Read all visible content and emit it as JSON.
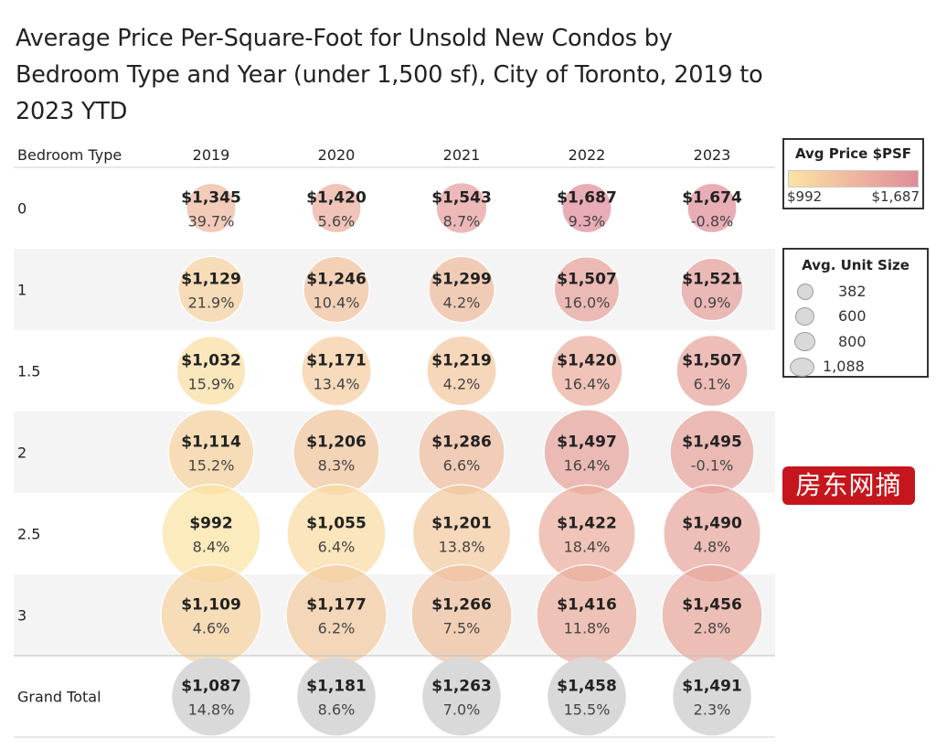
{
  "chart_data": {
    "type": "table",
    "title": "Average Price Per-Square-Foot for Unsold New Condos by Bedroom Type and Year (under 1,500 sf), City of Toronto, 2019 to 2023 YTD",
    "row_header": "Bedroom Type",
    "years": [
      "2019",
      "2020",
      "2021",
      "2022",
      "2023"
    ],
    "rows": [
      {
        "label": "0",
        "prices": [
          "$1,345",
          "$1,420",
          "$1,543",
          "$1,687",
          "$1,674"
        ],
        "price_values": [
          1345,
          1420,
          1543,
          1687,
          1674
        ],
        "changes": [
          "39.7%",
          "5.6%",
          "8.7%",
          "9.3%",
          "-0.8%"
        ],
        "unit_size_estimate": [
          382,
          382,
          400,
          382,
          382
        ]
      },
      {
        "label": "1",
        "prices": [
          "$1,129",
          "$1,246",
          "$1,299",
          "$1,507",
          "$1,521"
        ],
        "price_values": [
          1129,
          1246,
          1299,
          1507,
          1521
        ],
        "changes": [
          "21.9%",
          "10.4%",
          "4.2%",
          "16.0%",
          "0.9%"
        ],
        "unit_size_estimate": [
          610,
          610,
          610,
          600,
          560
        ]
      },
      {
        "label": "1.5",
        "prices": [
          "$1,032",
          "$1,171",
          "$1,219",
          "$1,420",
          "$1,507"
        ],
        "price_values": [
          1032,
          1171,
          1219,
          1420,
          1507
        ],
        "changes": [
          "15.9%",
          "13.4%",
          "4.2%",
          "16.4%",
          "6.1%"
        ],
        "unit_size_estimate": [
          650,
          660,
          660,
          680,
          680
        ]
      },
      {
        "label": "2",
        "prices": [
          "$1,114",
          "$1,206",
          "$1,286",
          "$1,497",
          "$1,495"
        ],
        "price_values": [
          1114,
          1206,
          1286,
          1497,
          1495
        ],
        "changes": [
          "15.2%",
          "8.3%",
          "6.6%",
          "16.4%",
          "-0.1%"
        ],
        "unit_size_estimate": [
          880,
          890,
          890,
          880,
          860
        ]
      },
      {
        "label": "2.5",
        "prices": [
          "$992",
          "$1,055",
          "$1,201",
          "$1,422",
          "$1,490"
        ],
        "price_values": [
          992,
          1055,
          1201,
          1422,
          1490
        ],
        "changes": [
          "8.4%",
          "6.4%",
          "13.8%",
          "18.4%",
          "4.8%"
        ],
        "unit_size_estimate": [
          1060,
          1060,
          1050,
          1040,
          1040
        ]
      },
      {
        "label": "3",
        "prices": [
          "$1,109",
          "$1,177",
          "$1,266",
          "$1,416",
          "$1,456"
        ],
        "price_values": [
          1109,
          1177,
          1266,
          1416,
          1456
        ],
        "changes": [
          "4.6%",
          "6.2%",
          "7.5%",
          "11.8%",
          "2.8%"
        ],
        "unit_size_estimate": [
          1088,
          1088,
          1088,
          1088,
          1088
        ]
      },
      {
        "label": "Grand Total",
        "prices": [
          "$1,087",
          "$1,181",
          "$1,263",
          "$1,458",
          "$1,491"
        ],
        "price_values": [
          1087,
          1181,
          1263,
          1458,
          1491
        ],
        "changes": [
          "14.8%",
          "8.6%",
          "7.0%",
          "15.5%",
          "2.3%"
        ],
        "unit_size_estimate": [
          780,
          780,
          780,
          780,
          780
        ],
        "is_total": true
      }
    ],
    "color_legend": {
      "title": "Avg Price $PSF",
      "min_label": "$992",
      "max_label": "$1,687",
      "min": 992,
      "max": 1687,
      "color_low": "#fbe3a3",
      "color_high": "#e08c9a"
    },
    "size_legend": {
      "title": "Avg. Unit Size",
      "items": [
        {
          "value": 382,
          "label": "382"
        },
        {
          "value": 600,
          "label": "600"
        },
        {
          "value": 800,
          "label": "800"
        },
        {
          "value": 1088,
          "label": "1,088"
        }
      ]
    },
    "total_color": "#d9d9d9"
  },
  "watermark": {
    "text": "房东网摘"
  }
}
